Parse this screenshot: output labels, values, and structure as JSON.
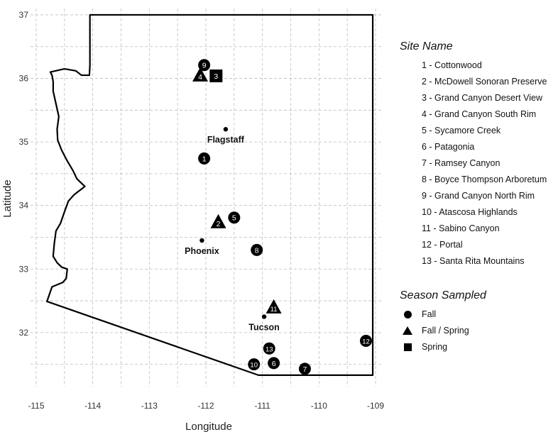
{
  "axes": {
    "xlabel": "Longitude",
    "ylabel": "Latitude",
    "xlim": [
      -115.1,
      -108.9
    ],
    "ylim": [
      31.15,
      37.1
    ],
    "xticks": [
      -115,
      -114,
      -113,
      -112,
      -111,
      -110,
      -109
    ],
    "yticks": [
      32,
      33,
      34,
      35,
      36,
      37
    ],
    "grid": "dashed"
  },
  "boundary_color": "#000000",
  "boundary": [
    [
      -114.05,
      37.0
    ],
    [
      -109.05,
      37.0
    ],
    [
      -109.05,
      31.33
    ],
    [
      -111.07,
      31.33
    ],
    [
      -114.81,
      32.49
    ],
    [
      -114.72,
      32.72
    ],
    [
      -114.53,
      32.79
    ],
    [
      -114.47,
      32.85
    ],
    [
      -114.45,
      33.0
    ],
    [
      -114.55,
      33.03
    ],
    [
      -114.63,
      33.1
    ],
    [
      -114.7,
      33.2
    ],
    [
      -114.68,
      33.4
    ],
    [
      -114.65,
      33.6
    ],
    [
      -114.57,
      33.72
    ],
    [
      -114.5,
      33.9
    ],
    [
      -114.43,
      34.07
    ],
    [
      -114.33,
      34.17
    ],
    [
      -114.14,
      34.3
    ],
    [
      -114.28,
      34.42
    ],
    [
      -114.35,
      34.55
    ],
    [
      -114.45,
      34.7
    ],
    [
      -114.55,
      34.87
    ],
    [
      -114.62,
      35.03
    ],
    [
      -114.63,
      35.2
    ],
    [
      -114.6,
      35.4
    ],
    [
      -114.65,
      35.6
    ],
    [
      -114.7,
      35.8
    ],
    [
      -114.7,
      35.95
    ],
    [
      -114.72,
      36.05
    ],
    [
      -114.75,
      36.1
    ],
    [
      -114.5,
      36.15
    ],
    [
      -114.3,
      36.12
    ],
    [
      -114.2,
      36.05
    ],
    [
      -114.06,
      36.05
    ],
    [
      -114.05,
      36.2
    ],
    [
      -114.05,
      37.0
    ]
  ],
  "cities": [
    {
      "name": "Flagstaff",
      "lon": -111.65,
      "lat": 35.2
    },
    {
      "name": "Phoenix",
      "lon": -112.07,
      "lat": 33.45
    },
    {
      "name": "Tucson",
      "lon": -110.97,
      "lat": 32.25
    }
  ],
  "legend_sites": {
    "title": "Site Name",
    "items": [
      "1 - Cottonwood",
      "2 - McDowell Sonoran Preserve",
      "3 - Grand Canyon Desert View",
      "4 - Grand Canyon South Rim",
      "5 - Sycamore Creek",
      "6 - Patagonia",
      "7 - Ramsey Canyon",
      "8 - Boyce Thompson Arboretum",
      "9 - Grand Canyon North Rim",
      "10 - Atascosa Highlands",
      "11 - Sabino Canyon",
      "12 - Portal",
      "13 - Santa Rita Mountains"
    ]
  },
  "legend_season": {
    "title": "Season Sampled",
    "items": [
      {
        "label": "Fall",
        "shape": "circle"
      },
      {
        "label": "Fall / Spring",
        "shape": "triangle"
      },
      {
        "label": "Spring",
        "shape": "square"
      }
    ]
  },
  "sites": [
    {
      "id": "1",
      "lon": -112.03,
      "lat": 34.74,
      "shape": "circle"
    },
    {
      "id": "2",
      "lon": -111.78,
      "lat": 33.72,
      "shape": "triangle"
    },
    {
      "id": "3",
      "lon": -111.82,
      "lat": 36.04,
      "shape": "square"
    },
    {
      "id": "4",
      "lon": -112.1,
      "lat": 36.03,
      "shape": "triangle"
    },
    {
      "id": "5",
      "lon": -111.5,
      "lat": 33.81,
      "shape": "circle"
    },
    {
      "id": "6",
      "lon": -110.8,
      "lat": 31.52,
      "shape": "circle"
    },
    {
      "id": "7",
      "lon": -110.25,
      "lat": 31.43,
      "shape": "circle"
    },
    {
      "id": "8",
      "lon": -111.1,
      "lat": 33.3,
      "shape": "circle"
    },
    {
      "id": "9",
      "lon": -112.03,
      "lat": 36.21,
      "shape": "circle"
    },
    {
      "id": "10",
      "lon": -111.15,
      "lat": 31.5,
      "shape": "circle"
    },
    {
      "id": "11",
      "lon": -110.8,
      "lat": 32.38,
      "shape": "triangle"
    },
    {
      "id": "12",
      "lon": -109.17,
      "lat": 31.87,
      "shape": "circle"
    },
    {
      "id": "13",
      "lon": -110.88,
      "lat": 31.75,
      "shape": "circle"
    }
  ]
}
